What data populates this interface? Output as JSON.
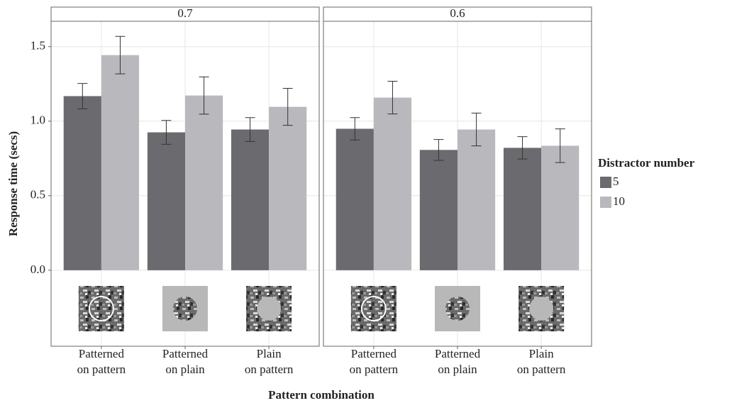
{
  "chart_data": {
    "type": "bar",
    "x_label": "Pattern combination",
    "y_label": "Response time (secs)",
    "legend_title": "Distractor number",
    "ylim": [
      -0.51,
      1.67
    ],
    "yticks": [
      {
        "value": 0,
        "label": "0.0"
      },
      0.5,
      {
        "value": 1,
        "label": "1.0"
      },
      1.5
    ],
    "grid": true,
    "legend": "right",
    "series_names": [
      "5",
      "10"
    ],
    "colors": [
      "#6b6b6f",
      "#b9b9bd"
    ],
    "facets": [
      {
        "title": "0.7",
        "categories": [
          [
            "Patterned",
            "on pattern"
          ],
          [
            "Patterned",
            "on plain"
          ],
          [
            "Plain",
            "on pattern"
          ]
        ],
        "series": [
          {
            "name": "5",
            "values": [
              1.168,
              0.925,
              0.944
            ],
            "errors": [
              0.085,
              0.08,
              0.08
            ]
          },
          {
            "name": "10",
            "values": [
              1.443,
              1.172,
              1.096
            ],
            "errors": [
              0.126,
              0.125,
              0.124
            ]
          }
        ]
      },
      {
        "title": "0.6",
        "categories": [
          [
            "Patterned",
            "on pattern"
          ],
          [
            "Patterned",
            "on plain"
          ],
          [
            "Plain",
            "on pattern"
          ]
        ],
        "series": [
          {
            "name": "5",
            "values": [
              0.949,
              0.807,
              0.821
            ],
            "errors": [
              0.075,
              0.07,
              0.075
            ]
          },
          {
            "name": "10",
            "values": [
              1.158,
              0.944,
              0.835
            ],
            "errors": [
              0.11,
              0.11,
              0.113
            ]
          }
        ]
      }
    ]
  }
}
